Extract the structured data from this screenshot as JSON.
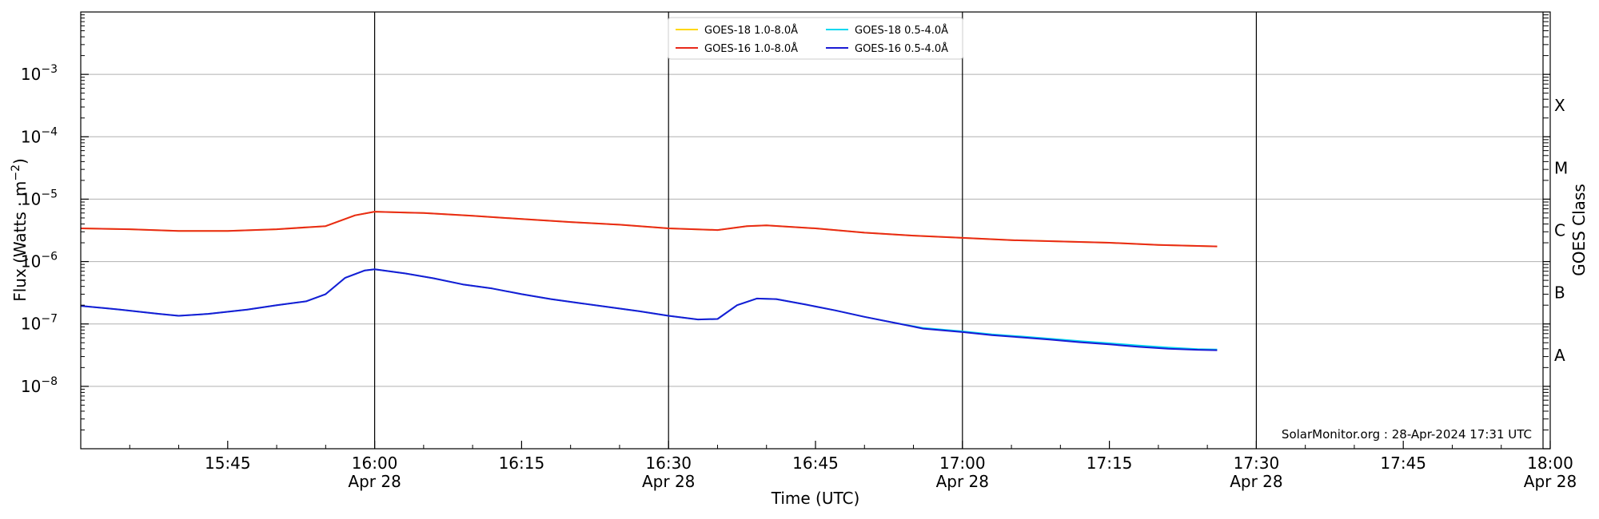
{
  "chart_data": {
    "type": "line",
    "title": "",
    "xlabel": "Time (UTC)",
    "ylabel_main": "Flux (Watts · m",
    "ylabel_exp": "−2",
    "ylabel_close": ")",
    "y2label": "GOES Class",
    "yscale": "log",
    "ylim": [
      1e-09,
      0.01
    ],
    "xlim": [
      "15:30",
      "18:00"
    ],
    "grid": "horizontal",
    "legend_placement": "top-center",
    "credit": "SolarMonitor.org : 28-Apr-2024 17:31 UTC",
    "x_tick_labels": [
      {
        "t": "15:45",
        "time": "15:45",
        "date": ""
      },
      {
        "t": "16:00",
        "time": "16:00",
        "date": "Apr 28"
      },
      {
        "t": "16:15",
        "time": "16:15",
        "date": ""
      },
      {
        "t": "16:30",
        "time": "16:30",
        "date": "Apr 28"
      },
      {
        "t": "16:45",
        "time": "16:45",
        "date": ""
      },
      {
        "t": "17:00",
        "time": "17:00",
        "date": "Apr 28"
      },
      {
        "t": "17:15",
        "time": "17:15",
        "date": ""
      },
      {
        "t": "17:30",
        "time": "17:30",
        "date": "Apr 28"
      },
      {
        "t": "17:45",
        "time": "17:45",
        "date": ""
      },
      {
        "t": "18:00",
        "time": "18:00",
        "date": "Apr 28"
      }
    ],
    "vertical_lines": [
      "16:00",
      "16:30",
      "17:00",
      "17:30"
    ],
    "y_tick_labels": [
      {
        "value": 1e-08,
        "exp": "−8"
      },
      {
        "value": 1e-07,
        "exp": "−7"
      },
      {
        "value": 1e-06,
        "exp": "−6"
      },
      {
        "value": 1e-05,
        "exp": "−5"
      },
      {
        "value": 0.0001,
        "exp": "−4"
      },
      {
        "value": 0.001,
        "exp": "−3"
      }
    ],
    "goes_classes": [
      {
        "label": "A",
        "value": 3.16e-08
      },
      {
        "label": "B",
        "value": 3.16e-07
      },
      {
        "label": "C",
        "value": 3.16e-06
      },
      {
        "label": "M",
        "value": 3.16e-05
      },
      {
        "label": "X",
        "value": 0.000316
      }
    ],
    "series": [
      {
        "name": "GOES-18 1.0-8.0Å",
        "color": "#ffd700",
        "x": [
          "15:30",
          "15:35",
          "15:40",
          "15:45",
          "15:50",
          "15:55",
          "15:58",
          "16:00",
          "16:05",
          "16:10",
          "16:15",
          "16:20",
          "16:25",
          "16:30",
          "16:35",
          "16:38",
          "16:40",
          "16:45",
          "16:50",
          "16:55",
          "17:00",
          "17:05",
          "17:10",
          "17:15",
          "17:20",
          "17:26"
        ],
        "y": [
          3.4e-06,
          3.3e-06,
          3.1e-06,
          3.1e-06,
          3.3e-06,
          3.7e-06,
          5.5e-06,
          6.3e-06,
          6e-06,
          5.4e-06,
          4.8e-06,
          4.3e-06,
          3.9e-06,
          3.4e-06,
          3.2e-06,
          3.7e-06,
          3.8e-06,
          3.4e-06,
          2.9e-06,
          2.6e-06,
          2.4e-06,
          2.2e-06,
          2.1e-06,
          2e-06,
          1.85e-06,
          1.75e-06
        ]
      },
      {
        "name": "GOES-16 1.0-8.0Å",
        "color": "#e8291a",
        "x": [
          "15:30",
          "15:35",
          "15:40",
          "15:45",
          "15:50",
          "15:55",
          "15:58",
          "16:00",
          "16:05",
          "16:10",
          "16:15",
          "16:20",
          "16:25",
          "16:30",
          "16:35",
          "16:38",
          "16:40",
          "16:45",
          "16:50",
          "16:55",
          "17:00",
          "17:05",
          "17:10",
          "17:15",
          "17:20",
          "17:26"
        ],
        "y": [
          3.4e-06,
          3.3e-06,
          3.1e-06,
          3.1e-06,
          3.3e-06,
          3.7e-06,
          5.5e-06,
          6.3e-06,
          6e-06,
          5.4e-06,
          4.8e-06,
          4.3e-06,
          3.9e-06,
          3.4e-06,
          3.2e-06,
          3.7e-06,
          3.8e-06,
          3.4e-06,
          2.9e-06,
          2.6e-06,
          2.4e-06,
          2.2e-06,
          2.1e-06,
          2e-06,
          1.85e-06,
          1.75e-06
        ]
      },
      {
        "name": "GOES-18 0.5-4.0Å",
        "color": "#00d8f0",
        "x": [
          "15:30",
          "15:34",
          "15:38",
          "15:40",
          "15:43",
          "15:47",
          "15:50",
          "15:53",
          "15:55",
          "15:57",
          "15:59",
          "16:00",
          "16:03",
          "16:06",
          "16:09",
          "16:12",
          "16:15",
          "16:18",
          "16:21",
          "16:24",
          "16:27",
          "16:30",
          "16:33",
          "16:35",
          "16:37",
          "16:39",
          "16:41",
          "16:44",
          "16:47",
          "16:50",
          "16:53",
          "16:56",
          "17:00",
          "17:03",
          "17:06",
          "17:09",
          "17:12",
          "17:15",
          "17:18",
          "17:21",
          "17:24",
          "17:26"
        ],
        "y": [
          1.95e-07,
          1.7e-07,
          1.45e-07,
          1.35e-07,
          1.45e-07,
          1.7e-07,
          2e-07,
          2.3e-07,
          3e-07,
          5.5e-07,
          7.2e-07,
          7.5e-07,
          6.5e-07,
          5.4e-07,
          4.3e-07,
          3.7e-07,
          3e-07,
          2.5e-07,
          2.15e-07,
          1.85e-07,
          1.6e-07,
          1.35e-07,
          1.18e-07,
          1.2e-07,
          2e-07,
          2.55e-07,
          2.5e-07,
          2.05e-07,
          1.65e-07,
          1.3e-07,
          1.05e-07,
          8.6e-08,
          7.6e-08,
          6.8e-08,
          6.3e-08,
          5.8e-08,
          5.3e-08,
          4.9e-08,
          4.5e-08,
          4.2e-08,
          3.95e-08,
          3.9e-08
        ]
      },
      {
        "name": "GOES-16 0.5-4.0Å",
        "color": "#1a1ad4",
        "x": [
          "15:30",
          "15:34",
          "15:38",
          "15:40",
          "15:43",
          "15:47",
          "15:50",
          "15:53",
          "15:55",
          "15:57",
          "15:59",
          "16:00",
          "16:03",
          "16:06",
          "16:09",
          "16:12",
          "16:15",
          "16:18",
          "16:21",
          "16:24",
          "16:27",
          "16:30",
          "16:33",
          "16:35",
          "16:37",
          "16:39",
          "16:41",
          "16:44",
          "16:47",
          "16:50",
          "16:53",
          "16:56",
          "17:00",
          "17:03",
          "17:06",
          "17:09",
          "17:12",
          "17:15",
          "17:18",
          "17:21",
          "17:24",
          "17:26"
        ],
        "y": [
          1.95e-07,
          1.7e-07,
          1.45e-07,
          1.35e-07,
          1.45e-07,
          1.7e-07,
          2e-07,
          2.3e-07,
          3e-07,
          5.5e-07,
          7.2e-07,
          7.5e-07,
          6.5e-07,
          5.4e-07,
          4.3e-07,
          3.7e-07,
          3e-07,
          2.5e-07,
          2.15e-07,
          1.85e-07,
          1.6e-07,
          1.35e-07,
          1.18e-07,
          1.2e-07,
          2e-07,
          2.55e-07,
          2.5e-07,
          2.05e-07,
          1.65e-07,
          1.3e-07,
          1.05e-07,
          8.4e-08,
          7.4e-08,
          6.6e-08,
          6.1e-08,
          5.6e-08,
          5.1e-08,
          4.7e-08,
          4.3e-08,
          4e-08,
          3.85e-08,
          3.8e-08
        ]
      }
    ],
    "legend_order": [
      0,
      2,
      1,
      3
    ]
  }
}
